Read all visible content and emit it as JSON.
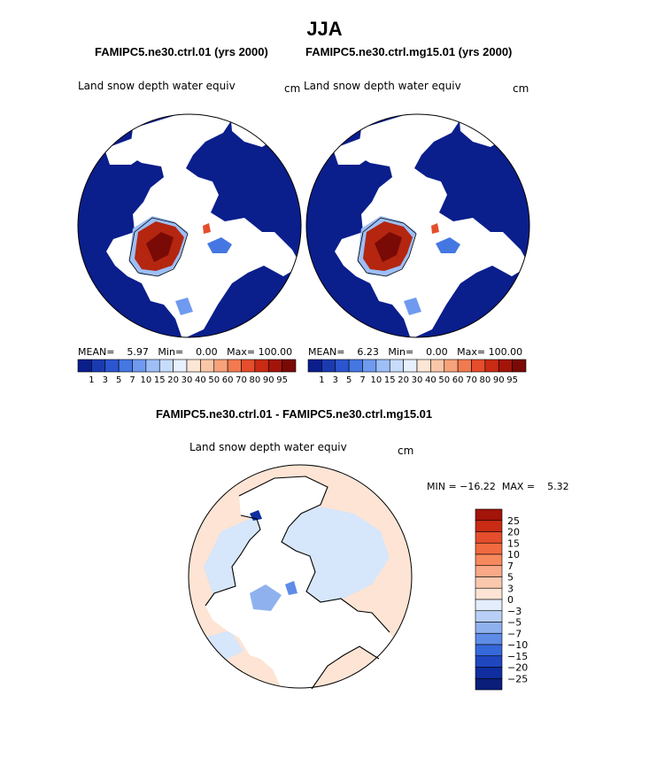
{
  "title": "JJA",
  "panels": [
    {
      "case": "FAMIPC5.ne30.ctrl.01 (yrs 2000)",
      "variable": "Land snow depth water equiv",
      "unit": "cm",
      "stats": {
        "mean_label": "MEAN=",
        "mean": "5.97",
        "min_label": "Min=",
        "min": "0.00",
        "max_label": "Max=",
        "max": "100.00"
      }
    },
    {
      "case": "FAMIPC5.ne30.ctrl.mg15.01 (yrs 2000)",
      "variable": "Land snow depth water equiv",
      "unit": "cm",
      "stats": {
        "mean_label": "MEAN=",
        "mean": "6.23",
        "min_label": "Min=",
        "min": "0.00",
        "max_label": "Max=",
        "max": "100.00"
      }
    }
  ],
  "diff_panel": {
    "title": "FAMIPC5.ne30.ctrl.01 - FAMIPC5.ne30.ctrl.mg15.01",
    "variable": "Land snow depth water equiv",
    "unit": "cm",
    "minmax": "MIN = −16.22  MAX =    5.32"
  },
  "colorbar_horizontal": {
    "labels": [
      "1",
      "3",
      "5",
      "7",
      "10",
      "15",
      "20",
      "30",
      "40",
      "50",
      "60",
      "70",
      "80",
      "90",
      "95"
    ],
    "colors": [
      "#0a1e8c",
      "#1a3ab0",
      "#2b55cf",
      "#4577e3",
      "#6f9af0",
      "#9dbef7",
      "#c7dcfb",
      "#e7f0fd",
      "#fce6d6",
      "#f9c7a8",
      "#f7a27a",
      "#f27a50",
      "#e54d2c",
      "#c92b14",
      "#a3140a",
      "#7a0a05"
    ]
  },
  "colorbar_vertical": {
    "labels": [
      "25",
      "20",
      "15",
      "10",
      "7",
      "5",
      "3",
      "0",
      "−3",
      "−5",
      "−7",
      "−10",
      "−15",
      "−20",
      "−25"
    ],
    "colors": [
      "#a3140a",
      "#c92b14",
      "#e54d2c",
      "#f26a3f",
      "#f7895e",
      "#f9a888",
      "#fbc8ad",
      "#fde4d4",
      "#e3edfb",
      "#b9d0f6",
      "#8fb2ef",
      "#5f8ce6",
      "#3568da",
      "#1f46bf",
      "#102e9f",
      "#0a1e7a"
    ]
  },
  "colors": {
    "ocean_deep": "#0a1e8c",
    "snow_max": "#b4260f",
    "diff_positive": "#fde4d4",
    "diff_negative": "#d6e6fb"
  }
}
